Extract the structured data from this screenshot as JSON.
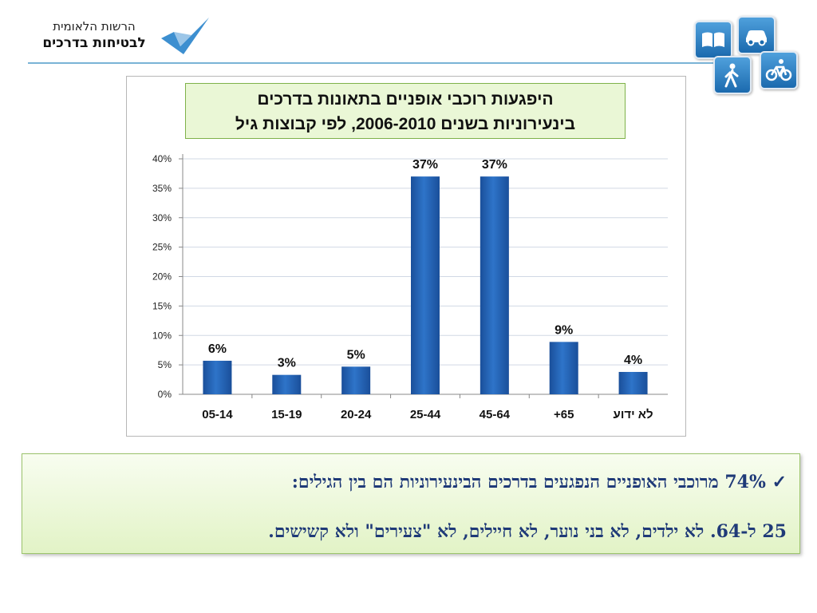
{
  "logo": {
    "line1": "הרשות הלאומית",
    "line2": "לבטיחות בדרכים"
  },
  "header_icons": [
    "book-icon",
    "car-icon",
    "pedestrian-icon",
    "bicycle-icon"
  ],
  "chart_data": {
    "type": "bar",
    "title_line1": "היפגעות רוכבי אופניים בתאונות בדרכים",
    "title_line2": "בינעירוניות בשנים 2006-2010, לפי קבוצות גיל",
    "categories": [
      "05-14",
      "15-19",
      "20-24",
      "25-44",
      "45-64",
      "+65",
      "לא ידוע"
    ],
    "values": [
      5.7,
      3.3,
      4.7,
      37,
      37,
      8.9,
      3.8
    ],
    "data_labels": [
      "6%",
      "3%",
      "5%",
      "37%",
      "37%",
      "9%",
      "4%"
    ],
    "y_ticks": [
      "0%",
      "5%",
      "10%",
      "15%",
      "20%",
      "25%",
      "30%",
      "35%",
      "40%"
    ],
    "ylim": [
      0,
      40
    ],
    "grid": true,
    "bar_color": "#2e74c9"
  },
  "note": {
    "line1": "✓ 74% מרוכבי האופניים הנפגעים בדרכים הבינעירוניות הם בין הגילים:",
    "line2": "25 ל-64. לא ילדים, לא בני נוער, לא חיילים, לא \"צעירים\" ולא קשישים."
  },
  "colors": {
    "divider": "#7ab3d6",
    "note_text": "#1f3a78",
    "title_bg": "#eaf7d6"
  }
}
